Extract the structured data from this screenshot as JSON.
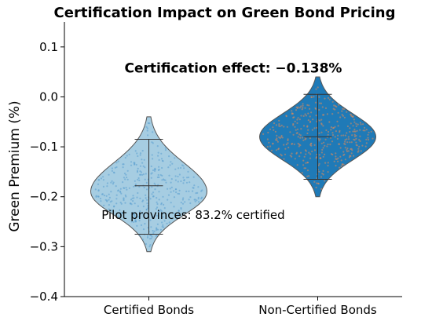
{
  "chart_data": {
    "type": "violin",
    "title": "Certification Impact on Green Bond Pricing",
    "xlabel": "",
    "ylabel": "Green Premium (%)",
    "ylim": [
      -0.4,
      0.15
    ],
    "yticks": [
      -0.4,
      -0.3,
      -0.2,
      -0.1,
      0.0,
      0.1
    ],
    "ytick_labels": [
      "−0.4",
      "−0.3",
      "−0.2",
      "−0.1",
      "0.0",
      "0.1"
    ],
    "categories": [
      "Certified Bonds",
      "Non-Certified Bonds"
    ],
    "series": [
      {
        "category": "Certified Bonds",
        "min": -0.31,
        "max": -0.04,
        "whisker_low": -0.275,
        "whisker_high": -0.085,
        "median": -0.178,
        "mode": -0.19,
        "fill": "#a6cde2",
        "point_color": "#5a9fd0"
      },
      {
        "category": "Non-Certified Bonds",
        "min": -0.2,
        "max": 0.04,
        "whisker_low": -0.165,
        "whisker_high": 0.005,
        "median": -0.08,
        "mode": -0.08,
        "fill": "#1f7ab7",
        "point_color": "#e08a5a"
      }
    ],
    "annotations": [
      {
        "text": "Certification effect: −0.138%",
        "x": 0.5,
        "y": 0.058
      },
      {
        "text": "Pilot provinces: 83.2% certified",
        "x": -0.28,
        "y": -0.235
      }
    ],
    "grid": false,
    "legend": "none"
  }
}
